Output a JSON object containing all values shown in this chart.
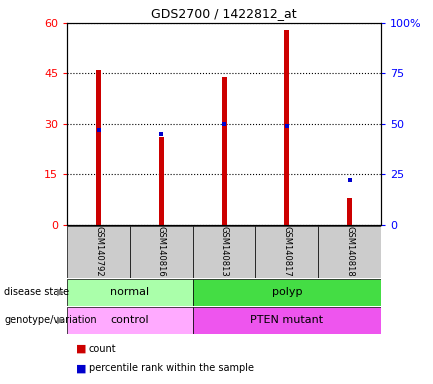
{
  "title": "GDS2700 / 1422812_at",
  "samples": [
    "GSM140792",
    "GSM140816",
    "GSM140813",
    "GSM140817",
    "GSM140818"
  ],
  "counts": [
    46,
    26,
    44,
    58,
    8
  ],
  "percentile_ranks": [
    47,
    45,
    50,
    49,
    22
  ],
  "left_ylim": [
    0,
    60
  ],
  "right_ylim": [
    0,
    100
  ],
  "left_yticks": [
    0,
    15,
    30,
    45,
    60
  ],
  "right_yticks": [
    0,
    25,
    50,
    75,
    100
  ],
  "right_yticklabels": [
    "0",
    "25",
    "50",
    "75",
    "100%"
  ],
  "bar_color": "#cc0000",
  "marker_color": "#0000cc",
  "bar_width": 0.08,
  "disease_colors": {
    "normal": "#aaffaa",
    "polyp": "#44dd44"
  },
  "genotype_colors": {
    "control": "#ffaaff",
    "PTEN mutant": "#ee55ee"
  },
  "bg_color": "#ffffff",
  "plot_bg_color": "#ffffff",
  "tick_label_area_color": "#cccccc"
}
